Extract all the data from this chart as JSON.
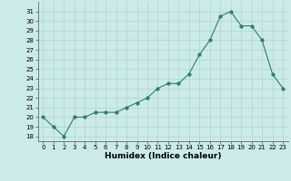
{
  "x": [
    0,
    1,
    2,
    3,
    4,
    5,
    6,
    7,
    8,
    9,
    10,
    11,
    12,
    13,
    14,
    15,
    16,
    17,
    18,
    19,
    20,
    21,
    22,
    23
  ],
  "y": [
    20,
    19,
    18,
    20,
    20,
    20.5,
    20.5,
    20.5,
    21,
    21.5,
    22,
    23,
    23.5,
    23.5,
    24.5,
    26.5,
    28,
    30.5,
    31,
    29.5,
    29.5,
    28,
    24.5,
    23
  ],
  "xlabel": "Humidex (Indice chaleur)",
  "ylim": [
    17.5,
    32
  ],
  "xlim": [
    -0.5,
    23.5
  ],
  "yticks": [
    18,
    19,
    20,
    21,
    22,
    23,
    24,
    25,
    26,
    27,
    28,
    29,
    30,
    31
  ],
  "xticks": [
    0,
    1,
    2,
    3,
    4,
    5,
    6,
    7,
    8,
    9,
    10,
    11,
    12,
    13,
    14,
    15,
    16,
    17,
    18,
    19,
    20,
    21,
    22,
    23
  ],
  "line_color": "#2e7d6e",
  "marker_color": "#2e7d6e",
  "bg_color": "#cceaea",
  "grid_color": "#aad4d4",
  "tick_fontsize": 5.0,
  "xlabel_fontsize": 6.5,
  "linewidth": 0.8,
  "markersize": 2.5
}
